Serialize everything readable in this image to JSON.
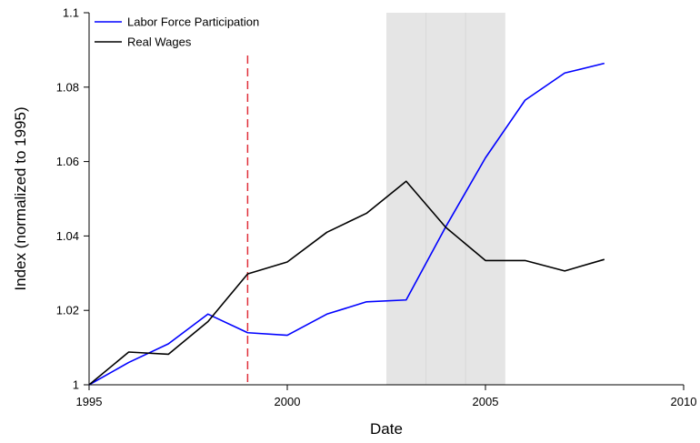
{
  "chart_data": {
    "type": "line",
    "xlabel": "Date",
    "ylabel": "Index (normalized to 1995)",
    "xlim": [
      1995,
      2010
    ],
    "ylim": [
      1.0,
      1.1
    ],
    "x_ticks": [
      1995,
      2000,
      2005,
      2010
    ],
    "y_ticks": [
      1.0,
      1.02,
      1.04,
      1.06,
      1.08,
      1.1
    ],
    "x_tick_labels": [
      "1995",
      "2000",
      "2005",
      "2010"
    ],
    "y_tick_labels": [
      "1",
      "1.02",
      "1.04",
      "1.06",
      "1.08",
      "1.1"
    ],
    "legend_position": "top-left",
    "grid": false,
    "series": [
      {
        "name": "Labor Force Participation",
        "color": "#0000ff",
        "x": [
          1995,
          1996,
          1997,
          1998,
          1999,
          2000,
          2001,
          2002,
          2003,
          2004,
          2005,
          2006,
          2007,
          2008
        ],
        "values": [
          1.0,
          1.006,
          1.011,
          1.019,
          1.014,
          1.0133,
          1.019,
          1.0223,
          1.0228,
          1.0425,
          1.061,
          1.0765,
          1.0838,
          1.0864
        ]
      },
      {
        "name": "Real Wages",
        "color": "#000000",
        "x": [
          1995,
          1996,
          1997,
          1998,
          1999,
          2000,
          2001,
          2002,
          2003,
          2004,
          2005,
          2006,
          2007,
          2008
        ],
        "values": [
          1.0,
          1.0088,
          1.0082,
          1.017,
          1.0298,
          1.033,
          1.041,
          1.0461,
          1.0547,
          1.0423,
          1.0334,
          1.0334,
          1.0306,
          1.0337
        ]
      }
    ],
    "annotations": {
      "vertical_line": {
        "x": 1999,
        "style": "dashed",
        "color": "#e0303a"
      },
      "shaded_region": {
        "x_start": 2002.5,
        "x_end": 2005.5,
        "color": "#e5e5e5",
        "inner_lines": [
          2003.5,
          2004.5
        ]
      }
    }
  }
}
